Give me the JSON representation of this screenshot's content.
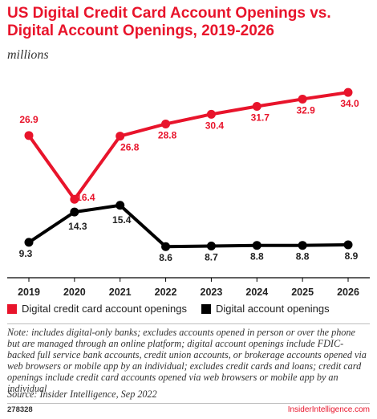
{
  "title": "US Digital Credit Card Account Openings vs. Digital Account Openings, 2019-2026",
  "subtitle": "millions",
  "chart_data": {
    "type": "line",
    "categories": [
      "2019",
      "2020",
      "2021",
      "2022",
      "2023",
      "2024",
      "2025",
      "2026"
    ],
    "series": [
      {
        "name": "Digital credit card account openings",
        "color": "#e8142b",
        "values": [
          26.9,
          16.4,
          26.8,
          28.8,
          30.4,
          31.7,
          32.9,
          34.0
        ],
        "labels": [
          "26.9",
          "16.4",
          "26.8",
          "28.8",
          "30.4",
          "31.7",
          "32.9",
          "34.0"
        ]
      },
      {
        "name": "Digital account openings",
        "color": "#000000",
        "values": [
          9.3,
          14.3,
          15.4,
          8.6,
          8.7,
          8.8,
          8.8,
          8.9
        ],
        "labels": [
          "9.3",
          "14.3",
          "15.4",
          "8.6",
          "8.7",
          "8.8",
          "8.8",
          "8.9"
        ]
      }
    ],
    "ylim": [
      4,
      36
    ],
    "grid": false,
    "legend_position": "bottom-left"
  },
  "legend": [
    {
      "label": "Digital credit card account openings",
      "color": "#e8142b"
    },
    {
      "label": "Digital account openings",
      "color": "#000000"
    }
  ],
  "note": "Note: includes digital-only banks; excludes accounts opened in person or over the phone but are managed through an online platform; digital account openings include FDIC-backed full service bank accounts, credit union accounts, or brokerage accounts opened via web browsers or mobile app by an individual; excludes credit cards and loans; credit card openings include credit card accounts opened via web browsers or mobile app by an individual",
  "source": "Source: Insider Intelligence, Sep 2022",
  "chart_id": "278328",
  "brand": "InsiderIntelligence.com"
}
